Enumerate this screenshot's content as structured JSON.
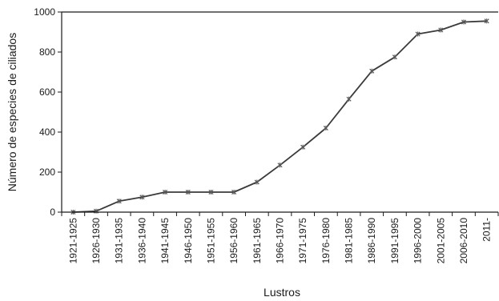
{
  "chart_data": {
    "type": "line",
    "title": "",
    "xlabel": "Lustros",
    "ylabel": "Número de especies de ciliados",
    "ylim": [
      0,
      1000
    ],
    "yticks": [
      0,
      200,
      400,
      600,
      800,
      1000
    ],
    "grid": false,
    "legend": "none",
    "categories": [
      "1921-1925",
      "1926-1930",
      "1931-1935",
      "1936-1940",
      "1941-1945",
      "1946-1950",
      "1951-1955",
      "1956-1960",
      "1961-1965",
      "1966-1970",
      "1971-1975",
      "1976-1980",
      "1981-1985",
      "1986-1990",
      "1991-1995",
      "1996-2000",
      "2001-2005",
      "2006-2010",
      "2011-"
    ],
    "series": [
      {
        "values": [
          0,
          5,
          55,
          75,
          100,
          100,
          100,
          100,
          150,
          235,
          325,
          420,
          565,
          705,
          775,
          890,
          910,
          950,
          955
        ]
      }
    ],
    "colors": {
      "line": "#3a3a3a",
      "marker": "#5a5a5a",
      "axis": "#1a1a1a"
    }
  }
}
